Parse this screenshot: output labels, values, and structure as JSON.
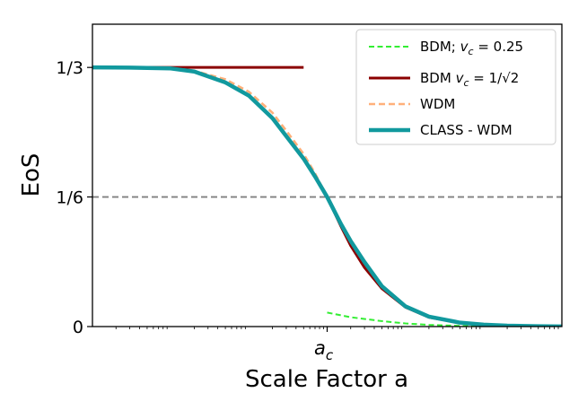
{
  "chart_data": {
    "type": "line",
    "xlabel": "Scale Factor a",
    "ylabel": "EoS",
    "x_scale": "log",
    "xlim": [
      0.001,
      1000
    ],
    "ylim": [
      0,
      0.3889
    ],
    "x_ticks": [
      {
        "x": 1,
        "label": "a_c",
        "label_main": "a",
        "label_sub": "c"
      }
    ],
    "y_ticks": [
      {
        "y": 0,
        "label": "0"
      },
      {
        "y": 0.1667,
        "label": "1/6"
      },
      {
        "y": 0.3333,
        "label": "1/3"
      }
    ],
    "reference_lines": [
      {
        "orientation": "horizontal",
        "y": 0.1667,
        "style": "dashed",
        "color": "#808080"
      }
    ],
    "legend_position": "top-right",
    "series": [
      {
        "name": "BDM; v_c = 0.25",
        "legend_main": "BDM; ",
        "legend_math": "v",
        "legend_sub": "c",
        "legend_rest": " = 0.25",
        "color": "#33ee33",
        "style": "dashed",
        "segments": [
          {
            "x": [
              0.001,
              0.5
            ],
            "y": [
              0.3333,
              0.3333
            ]
          },
          {
            "x": [
              1,
              2,
              5,
              10,
              20,
              50,
              100,
              200,
              500,
              1000
            ],
            "y": [
              0.018,
              0.012,
              0.007,
              0.004,
              0.0022,
              0.0009,
              0.0004,
              0.0002,
              0.0001,
              5e-05
            ]
          }
        ]
      },
      {
        "name": "BDM v_c = 1/√2",
        "legend_main": "BDM ",
        "legend_math": "v",
        "legend_sub": "c",
        "legend_rest": " = 1/√2",
        "color": "#8b0000",
        "style": "solid",
        "segments": [
          {
            "x": [
              0.001,
              0.5
            ],
            "y": [
              0.3333,
              0.3333
            ]
          },
          {
            "x": [
              1,
              1.5,
              2,
              3,
              5,
              10,
              20,
              50,
              100,
              200,
              500,
              1000
            ],
            "y": [
              0.1667,
              0.129,
              0.104,
              0.076,
              0.049,
              0.025,
              0.012,
              0.0048,
              0.0024,
              0.0012,
              0.0005,
              0.0002
            ]
          }
        ]
      },
      {
        "name": "WDM",
        "legend_main": "WDM",
        "color": "#ffb07a",
        "style": "dashed",
        "segments": [
          {
            "x": [
              0.001,
              0.003,
              0.01,
              0.02,
              0.05,
              0.1,
              0.2,
              0.3,
              0.5,
              0.7,
              1,
              1.5,
              2,
              3,
              5,
              10,
              20,
              50,
              100,
              200,
              500,
              1000
            ],
            "y": [
              0.333,
              0.333,
              0.332,
              0.329,
              0.318,
              0.302,
              0.275,
              0.252,
              0.222,
              0.197,
              0.1667,
              0.133,
              0.112,
              0.084,
              0.053,
              0.027,
              0.0132,
              0.0052,
              0.0026,
              0.0013,
              0.0005,
              0.0002
            ]
          }
        ]
      },
      {
        "name": "CLASS - WDM",
        "legend_main": "CLASS - WDM",
        "color": "#11999e",
        "style": "solid",
        "segments": [
          {
            "x": [
              0.001,
              0.003,
              0.01,
              0.02,
              0.05,
              0.1,
              0.2,
              0.3,
              0.5,
              0.7,
              1,
              1.5,
              2,
              3,
              5,
              10,
              20,
              50,
              100,
              200,
              500,
              1000
            ],
            "y": [
              0.3333,
              0.3331,
              0.332,
              0.328,
              0.314,
              0.297,
              0.268,
              0.245,
              0.216,
              0.193,
              0.1667,
              0.132,
              0.11,
              0.083,
              0.052,
              0.026,
              0.0128,
              0.005,
              0.0025,
              0.0012,
              0.0005,
              0.0002
            ]
          }
        ]
      }
    ]
  }
}
